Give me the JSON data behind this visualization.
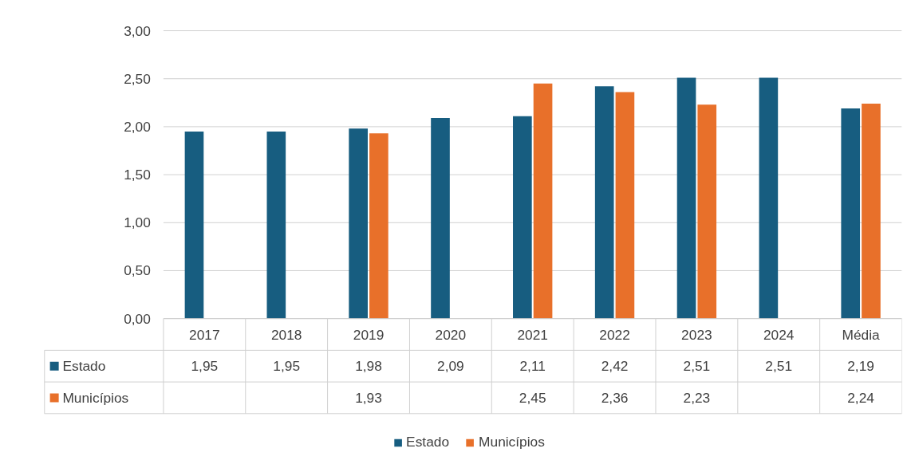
{
  "chart_data": {
    "type": "bar",
    "categories": [
      "2017",
      "2018",
      "2019",
      "2020",
      "2021",
      "2022",
      "2023",
      "2024",
      "Média"
    ],
    "series": [
      {
        "name": "Estado",
        "color": "#175d80",
        "values": [
          1.95,
          1.95,
          1.98,
          2.09,
          2.11,
          2.42,
          2.51,
          2.51,
          2.19
        ],
        "value_labels": [
          "1,95",
          "1,95",
          "1,98",
          "2,09",
          "2,11",
          "2,42",
          "2,51",
          "2,51",
          "2,19"
        ]
      },
      {
        "name": "Municípios",
        "color": "#e8702a",
        "values": [
          null,
          null,
          1.93,
          null,
          2.45,
          2.36,
          2.23,
          null,
          2.24
        ],
        "value_labels": [
          null,
          null,
          "1,93",
          null,
          "2,45",
          "2,36",
          "2,23",
          null,
          "2,24"
        ]
      }
    ],
    "ylim": [
      0,
      3
    ],
    "yticks": [
      {
        "value": 0,
        "label": "0,00"
      },
      {
        "value": 0.5,
        "label": "0,50"
      },
      {
        "value": 1,
        "label": "1,00"
      },
      {
        "value": 1.5,
        "label": "1,50"
      },
      {
        "value": 2,
        "label": "2,00"
      },
      {
        "value": 2.5,
        "label": "2,50"
      },
      {
        "value": 3,
        "label": "3,00"
      }
    ],
    "grid": "y",
    "legend": "bottom"
  }
}
